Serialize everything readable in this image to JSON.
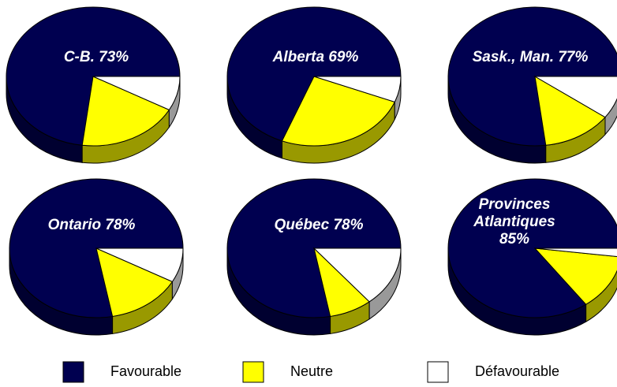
{
  "chart_data": {
    "type": "pie",
    "series": [
      {
        "name": "Favourable",
        "color": "#000050"
      },
      {
        "name": "Neutre",
        "color": "#ffff00"
      },
      {
        "name": "Défavourable",
        "color": "#ffffff"
      }
    ],
    "charts": [
      {
        "label": [
          "C-B. 73%"
        ],
        "values": [
          73,
          19,
          8
        ]
      },
      {
        "label": [
          "Alberta 69%"
        ],
        "values": [
          69,
          25,
          6
        ]
      },
      {
        "label": [
          "Sask., Man. 77%"
        ],
        "values": [
          77,
          13,
          10
        ]
      },
      {
        "label": [
          "Ontario 78%"
        ],
        "values": [
          78,
          14,
          8
        ]
      },
      {
        "label": [
          "Québec 78%"
        ],
        "values": [
          78,
          8,
          14
        ]
      },
      {
        "label": [
          "Provinces",
          "Atlantiques",
          "85%"
        ],
        "values": [
          85,
          13,
          2
        ]
      }
    ]
  }
}
